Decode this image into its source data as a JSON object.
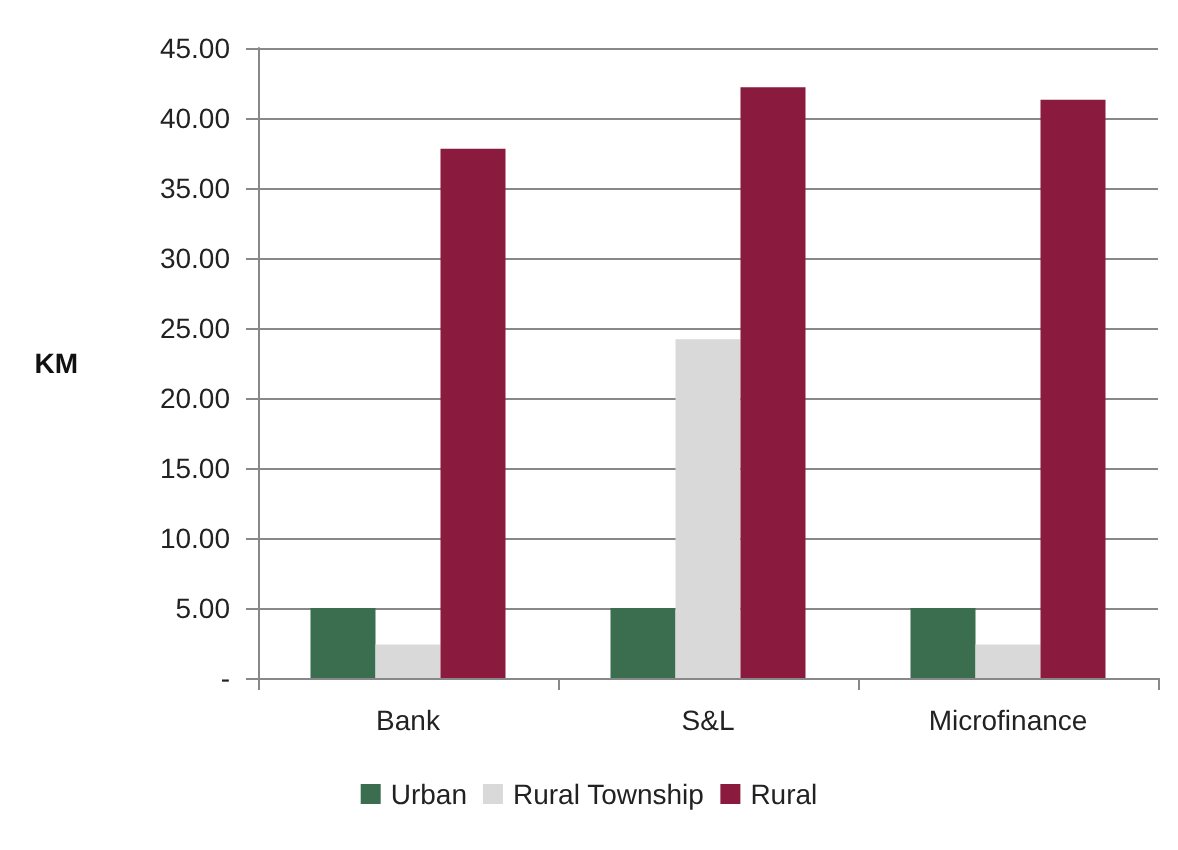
{
  "chart_data": {
    "type": "bar",
    "ylabel": "KM",
    "categories": [
      "Bank",
      "S&L",
      "Microfinance"
    ],
    "series": [
      {
        "name": "Urban",
        "color": "#3b6e4f",
        "values": [
          5,
          5,
          5
        ]
      },
      {
        "name": "Rural Township",
        "color": "#d9d9d9",
        "values": [
          2.4,
          24.2,
          2.4
        ]
      },
      {
        "name": "Rural",
        "color": "#8a1a3e",
        "values": [
          37.8,
          42.2,
          41.3
        ]
      }
    ],
    "ylim": [
      0,
      45
    ],
    "yticks": [
      {
        "value": 0,
        "label": "-"
      },
      {
        "value": 5,
        "label": "5.00"
      },
      {
        "value": 10,
        "label": "10.00"
      },
      {
        "value": 15,
        "label": "15.00"
      },
      {
        "value": 20,
        "label": "20.00"
      },
      {
        "value": 25,
        "label": "25.00"
      },
      {
        "value": 30,
        "label": "30.00"
      },
      {
        "value": 35,
        "label": "35.00"
      },
      {
        "value": 40,
        "label": "40.00"
      },
      {
        "value": 45,
        "label": "45.00"
      }
    ],
    "grid": "y",
    "legend": "bottom"
  }
}
